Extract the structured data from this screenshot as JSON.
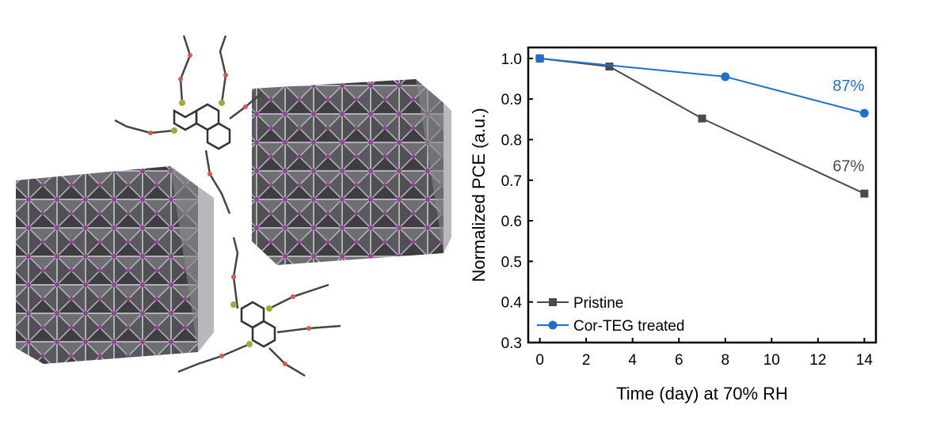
{
  "chart_data": {
    "type": "line",
    "xlabel": "Time (day) at 70% RH",
    "ylabel": "Normalized PCE (a.u.)",
    "xlim": [
      -0.5,
      14.5
    ],
    "ylim": [
      0.3,
      1.027
    ],
    "xticks": [
      0,
      2,
      4,
      6,
      8,
      10,
      12,
      14
    ],
    "yticks": [
      0.3,
      0.4,
      0.5,
      0.6,
      0.7,
      0.8,
      0.9,
      {
        "value": 1,
        "label": "1.0"
      }
    ],
    "legend": "lower left",
    "series": [
      {
        "name": "Pristine",
        "color": "#4a4a4a",
        "marker": "square",
        "x": [
          0,
          3,
          7,
          14
        ],
        "values": [
          1.0,
          0.98,
          0.852,
          0.667
        ]
      },
      {
        "name": "Cor-TEG treated",
        "color": "#1f6fd1",
        "marker": "circle",
        "x": [
          0,
          8,
          14
        ],
        "values": [
          1.0,
          0.955,
          0.865
        ]
      }
    ],
    "annotations": [
      "67%",
      "87%"
    ]
  }
}
